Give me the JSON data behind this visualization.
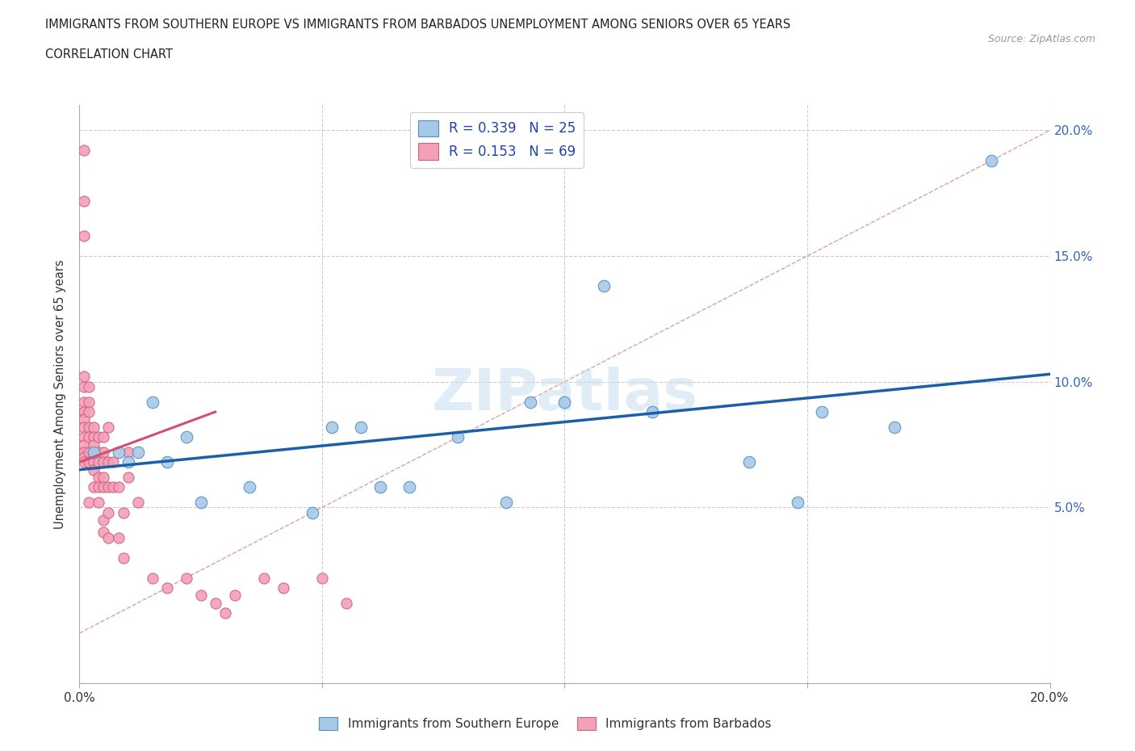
{
  "title_line1": "IMMIGRANTS FROM SOUTHERN EUROPE VS IMMIGRANTS FROM BARBADOS UNEMPLOYMENT AMONG SENIORS OVER 65 YEARS",
  "title_line2": "CORRELATION CHART",
  "source_text": "Source: ZipAtlas.com",
  "ylabel": "Unemployment Among Seniors over 65 years",
  "xlim": [
    0.0,
    0.2
  ],
  "ylim": [
    -0.02,
    0.21
  ],
  "watermark_text": "ZIPatlas",
  "color_blue": "#a8c8e8",
  "color_pink": "#f4a0b8",
  "color_blue_edge": "#5090c0",
  "color_pink_edge": "#d06080",
  "color_blue_line": "#1a5fa8",
  "color_pink_line": "#d05070",
  "color_diag": "#e0a0a8",
  "blue_scatter_x": [
    0.003,
    0.008,
    0.01,
    0.012,
    0.015,
    0.018,
    0.022,
    0.025,
    0.035,
    0.048,
    0.052,
    0.058,
    0.062,
    0.068,
    0.078,
    0.088,
    0.093,
    0.1,
    0.108,
    0.118,
    0.138,
    0.148,
    0.153,
    0.168,
    0.188
  ],
  "blue_scatter_y": [
    0.072,
    0.072,
    0.068,
    0.072,
    0.092,
    0.068,
    0.078,
    0.052,
    0.058,
    0.048,
    0.082,
    0.082,
    0.058,
    0.058,
    0.078,
    0.052,
    0.092,
    0.092,
    0.138,
    0.088,
    0.068,
    0.052,
    0.088,
    0.082,
    0.188
  ],
  "pink_scatter_x": [
    0.001,
    0.001,
    0.001,
    0.001,
    0.001,
    0.001,
    0.001,
    0.001,
    0.001,
    0.001,
    0.001,
    0.001,
    0.001,
    0.001,
    0.001,
    0.002,
    0.002,
    0.002,
    0.002,
    0.002,
    0.002,
    0.002,
    0.002,
    0.003,
    0.003,
    0.003,
    0.003,
    0.003,
    0.003,
    0.003,
    0.003,
    0.004,
    0.004,
    0.004,
    0.004,
    0.004,
    0.004,
    0.005,
    0.005,
    0.005,
    0.005,
    0.005,
    0.005,
    0.005,
    0.006,
    0.006,
    0.006,
    0.006,
    0.006,
    0.007,
    0.007,
    0.008,
    0.008,
    0.009,
    0.009,
    0.01,
    0.01,
    0.012,
    0.015,
    0.018,
    0.022,
    0.025,
    0.028,
    0.03,
    0.032,
    0.038,
    0.042,
    0.05,
    0.055
  ],
  "pink_scatter_y": [
    0.192,
    0.172,
    0.158,
    0.102,
    0.098,
    0.092,
    0.088,
    0.088,
    0.085,
    0.082,
    0.078,
    0.075,
    0.072,
    0.07,
    0.068,
    0.098,
    0.092,
    0.088,
    0.082,
    0.078,
    0.072,
    0.068,
    0.052,
    0.082,
    0.078,
    0.072,
    0.068,
    0.058,
    0.075,
    0.072,
    0.065,
    0.078,
    0.072,
    0.068,
    0.062,
    0.058,
    0.052,
    0.078,
    0.072,
    0.068,
    0.062,
    0.058,
    0.045,
    0.04,
    0.082,
    0.068,
    0.058,
    0.048,
    0.038,
    0.068,
    0.058,
    0.058,
    0.038,
    0.048,
    0.03,
    0.072,
    0.062,
    0.052,
    0.022,
    0.018,
    0.022,
    0.015,
    0.012,
    0.008,
    0.015,
    0.022,
    0.018,
    0.022,
    0.012
  ],
  "blue_line_x": [
    0.0,
    0.2
  ],
  "blue_line_y": [
    0.065,
    0.103
  ],
  "pink_line_x": [
    0.0,
    0.028
  ],
  "pink_line_y": [
    0.068,
    0.088
  ],
  "diag_line_x": [
    0.0,
    0.2
  ],
  "diag_line_y": [
    0.0,
    0.2
  ]
}
